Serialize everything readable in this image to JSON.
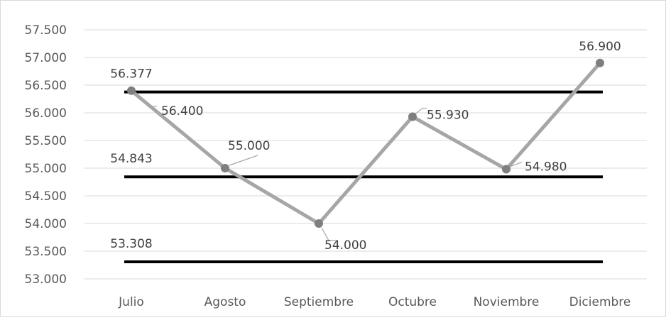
{
  "chart_data": {
    "type": "line",
    "categories": [
      "Julio",
      "Agosto",
      "Septiembre",
      "Octubre",
      "Noviembre",
      "Diciembre"
    ],
    "series": [
      {
        "values": [
          56400,
          55000,
          54000,
          55930,
          54980,
          56900
        ],
        "value_labels": [
          "56.400",
          "55.000",
          "54.000",
          "55.930",
          "54.980",
          "56.900"
        ],
        "color": "#a6a6a6",
        "marker_color": "#7f7f7f"
      }
    ],
    "reference_lines": [
      {
        "value": 56377,
        "label": "56.377",
        "color": "#000000"
      },
      {
        "value": 54843,
        "label": "54.843",
        "color": "#000000"
      },
      {
        "value": 53308,
        "label": "53.308",
        "color": "#000000"
      }
    ],
    "y_ticks": [
      53000,
      53500,
      54000,
      54500,
      55000,
      55500,
      56000,
      56500,
      57000,
      57500
    ],
    "y_tick_labels": [
      "53.000",
      "53.500",
      "54.000",
      "54.500",
      "55.000",
      "55.500",
      "56.000",
      "56.500",
      "57.000",
      "57.500"
    ],
    "ylim": [
      53000,
      57500
    ],
    "grid": true,
    "legend": "none",
    "title": "",
    "xlabel": "",
    "ylabel": ""
  }
}
